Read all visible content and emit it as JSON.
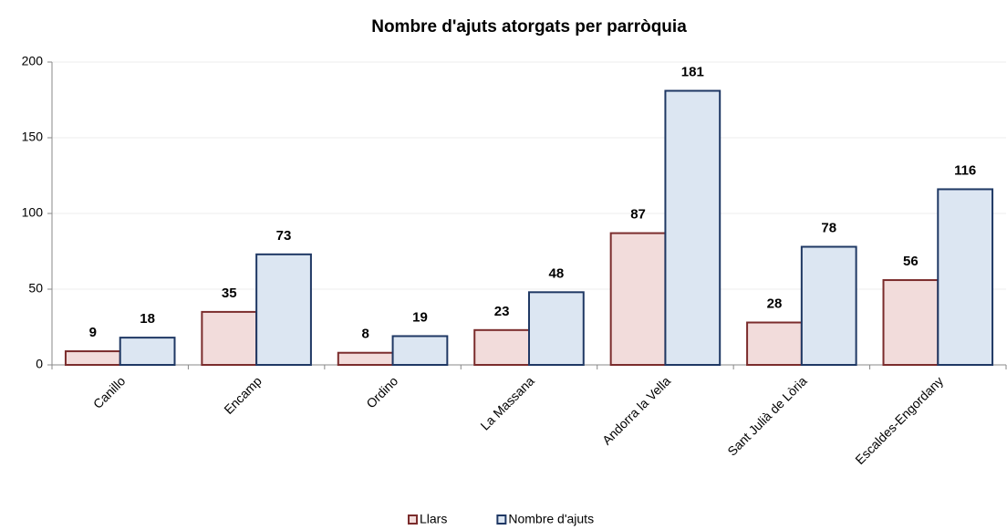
{
  "chart_data": {
    "type": "bar",
    "title": "Nombre d'ajuts atorgats per parròquia",
    "categories": [
      "Canillo",
      "Encamp",
      "Ordino",
      "La Massana",
      "Andorra la Vella",
      "Sant Julià de Lòria",
      "Escaldes-Engordany"
    ],
    "series": [
      {
        "name": "Llars",
        "color": "#f2dcdb",
        "edge_color": "#7b2c2c",
        "values": [
          9,
          35,
          8,
          23,
          87,
          28,
          56
        ]
      },
      {
        "name": "Nombre d'ajuts",
        "color": "#dce6f2",
        "edge_color": "#1f3864",
        "values": [
          18,
          73,
          19,
          48,
          181,
          78,
          116
        ]
      }
    ],
    "ylim": [
      0,
      200
    ],
    "yticks": [
      0,
      50,
      100,
      150,
      200
    ],
    "grid": true,
    "legend": "bottom"
  }
}
